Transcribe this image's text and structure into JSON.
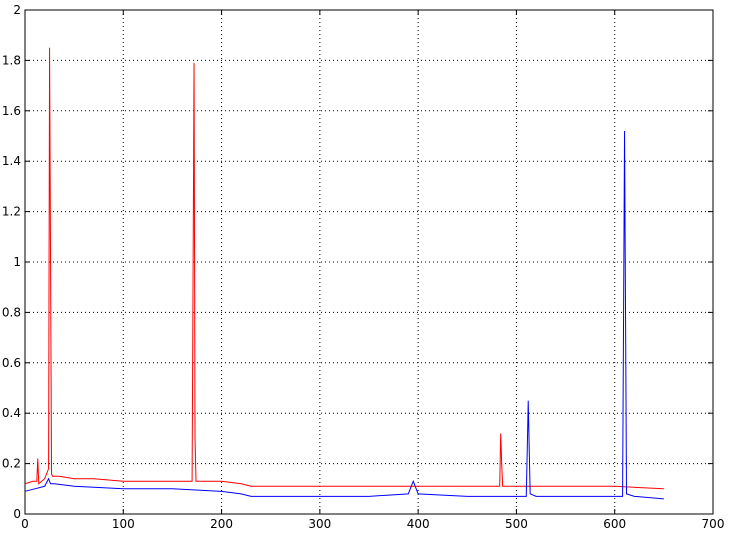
{
  "chart_data": {
    "type": "line",
    "title": "",
    "xlabel": "",
    "ylabel": "",
    "xlim": [
      0,
      700
    ],
    "ylim": [
      0,
      2
    ],
    "grid": true,
    "x_ticks": [
      "0",
      "100",
      "200",
      "300",
      "400",
      "500",
      "600",
      "700"
    ],
    "y_ticks": [
      "0",
      "0.2",
      "0.4",
      "0.6",
      "0.8",
      "1",
      "1.2",
      "1.4",
      "1.6",
      "1.8",
      "2"
    ],
    "x_tick_values": [
      0,
      100,
      200,
      300,
      400,
      500,
      600,
      700
    ],
    "y_tick_values": [
      0,
      0.2,
      0.4,
      0.6,
      0.8,
      1,
      1.2,
      1.4,
      1.6,
      1.8,
      2
    ],
    "series": [
      {
        "color": "#ff0000",
        "x": [
          0,
          8,
          12,
          13,
          14,
          20,
          24,
          25,
          26,
          27,
          28,
          35,
          50,
          70,
          100,
          150,
          170,
          171,
          172,
          173,
          174,
          180,
          200,
          220,
          230,
          260,
          300,
          350,
          400,
          450,
          480,
          483,
          484,
          485,
          486,
          500,
          550,
          600,
          650
        ],
        "y": [
          0.12,
          0.13,
          0.13,
          0.22,
          0.12,
          0.14,
          0.18,
          1.85,
          1.0,
          0.16,
          0.15,
          0.15,
          0.14,
          0.14,
          0.13,
          0.13,
          0.13,
          0.95,
          1.79,
          0.3,
          0.13,
          0.13,
          0.13,
          0.12,
          0.11,
          0.11,
          0.11,
          0.11,
          0.11,
          0.11,
          0.11,
          0.11,
          0.32,
          0.2,
          0.11,
          0.11,
          0.11,
          0.11,
          0.1
        ]
      },
      {
        "color": "#0000ff",
        "x": [
          0,
          10,
          20,
          24,
          26,
          30,
          50,
          100,
          150,
          200,
          220,
          230,
          300,
          350,
          390,
          395,
          400,
          450,
          500,
          510,
          511,
          512,
          513,
          514,
          520,
          550,
          600,
          608,
          609,
          610,
          611,
          612,
          620,
          650
        ],
        "y": [
          0.09,
          0.1,
          0.11,
          0.14,
          0.12,
          0.12,
          0.11,
          0.1,
          0.1,
          0.09,
          0.08,
          0.07,
          0.07,
          0.07,
          0.08,
          0.13,
          0.08,
          0.07,
          0.07,
          0.07,
          0.25,
          0.45,
          0.26,
          0.08,
          0.07,
          0.07,
          0.07,
          0.07,
          0.78,
          1.52,
          0.8,
          0.08,
          0.07,
          0.06
        ]
      }
    ]
  }
}
